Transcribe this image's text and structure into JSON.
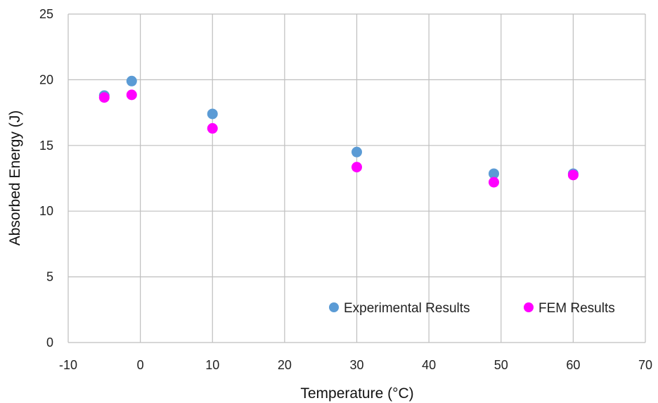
{
  "chart_data": {
    "type": "scatter",
    "title": "",
    "xlabel": "Temperature (°C)",
    "ylabel": "Absorbed Energy (J)",
    "xlim": [
      -10,
      70
    ],
    "ylim": [
      0,
      25
    ],
    "xticks": [
      -10,
      0,
      10,
      20,
      30,
      40,
      50,
      60,
      70
    ],
    "yticks": [
      0,
      5,
      10,
      15,
      20,
      25
    ],
    "grid": true,
    "legend_position": "bottom-right",
    "series": [
      {
        "name": "Experimental Results",
        "color": "#5B9BD5",
        "x": [
          -5,
          -1.2,
          10,
          30,
          49,
          60
        ],
        "y": [
          18.8,
          19.9,
          17.4,
          14.5,
          12.85,
          12.85
        ]
      },
      {
        "name": "FEM Results",
        "color": "#FF00FF",
        "x": [
          -5,
          -1.2,
          10,
          30,
          49,
          60
        ],
        "y": [
          18.65,
          18.85,
          16.3,
          13.35,
          12.2,
          12.75
        ]
      }
    ]
  }
}
